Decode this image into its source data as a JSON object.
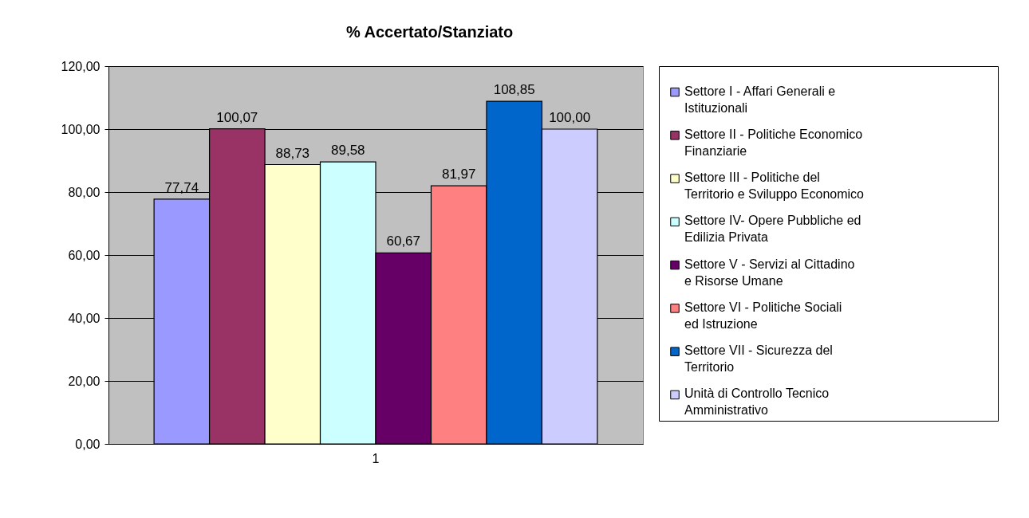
{
  "chart_data": {
    "type": "bar",
    "title": "% Accertato/Stanziato",
    "categories": [
      "1"
    ],
    "series": [
      {
        "name": "Settore I - Affari Generali e Istituzionali",
        "color": "#9999ff",
        "values": [
          77.74
        ],
        "value_labels": [
          "77,74"
        ]
      },
      {
        "name": "Settore II - Politiche Economico Finanziarie",
        "color": "#993366",
        "values": [
          100.07
        ],
        "value_labels": [
          "100,07"
        ]
      },
      {
        "name": "Settore III - Politiche del Territorio e Sviluppo Economico",
        "color": "#ffffcc",
        "values": [
          88.73
        ],
        "value_labels": [
          "88,73"
        ]
      },
      {
        "name": "Settore IV- Opere Pubbliche ed Edilizia Privata",
        "color": "#ccffff",
        "values": [
          89.58
        ],
        "value_labels": [
          "89,58"
        ]
      },
      {
        "name": "Settore V - Servizi al Cittadino e Risorse Umane",
        "color": "#660066",
        "values": [
          60.67
        ],
        "value_labels": [
          "60,67"
        ]
      },
      {
        "name": "Settore VI - Politiche Sociali  ed Istruzione",
        "color": "#ff8080",
        "values": [
          81.97
        ],
        "value_labels": [
          "81,97"
        ]
      },
      {
        "name": "Settore VII - Sicurezza del Territorio",
        "color": "#0066cc",
        "values": [
          108.85
        ],
        "value_labels": [
          "108,85"
        ]
      },
      {
        "name": "Unità di Controllo Tecnico Amministrativo",
        "color": "#ccccff",
        "values": [
          100.0
        ],
        "value_labels": [
          "100,00"
        ]
      }
    ],
    "ylim": [
      0,
      120
    ],
    "yticks": [
      {
        "value": 0,
        "label": "0,00"
      },
      {
        "value": 20,
        "label": "20,00"
      },
      {
        "value": 40,
        "label": "40,00"
      },
      {
        "value": 60,
        "label": "60,00"
      },
      {
        "value": 80,
        "label": "80,00"
      },
      {
        "value": 100,
        "label": "100,00"
      },
      {
        "value": 120,
        "label": "120,00"
      }
    ],
    "grid": "y",
    "legend": "right"
  }
}
